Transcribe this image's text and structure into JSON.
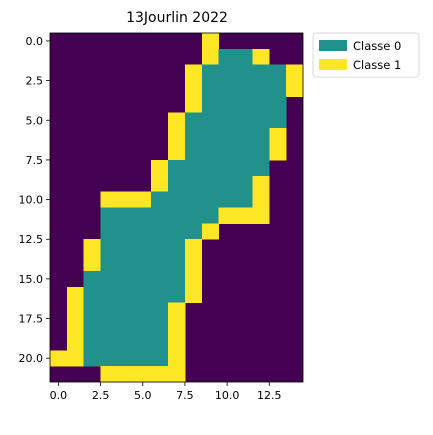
{
  "chart_data": {
    "type": "heatmap",
    "title": "13Jourlin 2022",
    "xlabel": "",
    "ylabel": "",
    "xlim": [
      -0.5,
      14.5
    ],
    "ylim": [
      21.5,
      -0.5
    ],
    "x_ticks": [
      0.0,
      2.5,
      5.0,
      7.5,
      10.0,
      12.5
    ],
    "x_tick_labels": [
      "0.0",
      "2.5",
      "5.0",
      "7.5",
      "10.0",
      "12.5"
    ],
    "y_ticks": [
      0.0,
      2.5,
      5.0,
      7.5,
      10.0,
      12.5,
      15.0,
      17.5,
      20.0
    ],
    "y_tick_labels": [
      "0.0",
      "2.5",
      "5.0",
      "7.5",
      "10.0",
      "12.5",
      "15.0",
      "17.5",
      "20.0"
    ],
    "grid": false,
    "legend_position": "outside-top-right",
    "colors": {
      "background": "#440154",
      "0": "#21918c",
      "1": "#fde725"
    },
    "legend": [
      {
        "label": "Classe 0",
        "color": "#21918c"
      },
      {
        "label": "Classe 1",
        "color": "#fde725"
      }
    ],
    "grid_values": [
      [
        null,
        null,
        null,
        null,
        null,
        null,
        null,
        null,
        null,
        1,
        null,
        null,
        null,
        null,
        null
      ],
      [
        null,
        null,
        null,
        null,
        null,
        null,
        null,
        null,
        null,
        1,
        0,
        0,
        1,
        null,
        null
      ],
      [
        null,
        null,
        null,
        null,
        null,
        null,
        null,
        null,
        1,
        0,
        0,
        0,
        0,
        0,
        1
      ],
      [
        null,
        null,
        null,
        null,
        null,
        null,
        null,
        null,
        1,
        0,
        0,
        0,
        0,
        0,
        1
      ],
      [
        null,
        null,
        null,
        null,
        null,
        null,
        null,
        null,
        1,
        0,
        0,
        0,
        0,
        0,
        null
      ],
      [
        null,
        null,
        null,
        null,
        null,
        null,
        null,
        1,
        0,
        0,
        0,
        0,
        0,
        0,
        null
      ],
      [
        null,
        null,
        null,
        null,
        null,
        null,
        null,
        1,
        0,
        0,
        0,
        0,
        0,
        1,
        null
      ],
      [
        null,
        null,
        null,
        null,
        null,
        null,
        null,
        1,
        0,
        0,
        0,
        0,
        0,
        1,
        null
      ],
      [
        null,
        null,
        null,
        null,
        null,
        null,
        1,
        0,
        0,
        0,
        0,
        0,
        0,
        null,
        null
      ],
      [
        null,
        null,
        null,
        null,
        null,
        null,
        1,
        0,
        0,
        0,
        0,
        0,
        1,
        null,
        null
      ],
      [
        null,
        null,
        null,
        1,
        1,
        1,
        0,
        0,
        0,
        0,
        0,
        0,
        1,
        null,
        null
      ],
      [
        null,
        null,
        null,
        0,
        0,
        0,
        0,
        0,
        0,
        0,
        1,
        1,
        1,
        null,
        null
      ],
      [
        null,
        null,
        null,
        0,
        0,
        0,
        0,
        0,
        0,
        1,
        null,
        null,
        null,
        null,
        null
      ],
      [
        null,
        null,
        1,
        0,
        0,
        0,
        0,
        0,
        1,
        null,
        null,
        null,
        null,
        null,
        null
      ],
      [
        null,
        null,
        1,
        0,
        0,
        0,
        0,
        0,
        1,
        null,
        null,
        null,
        null,
        null,
        null
      ],
      [
        null,
        null,
        0,
        0,
        0,
        0,
        0,
        0,
        1,
        null,
        null,
        null,
        null,
        null,
        null
      ],
      [
        null,
        1,
        0,
        0,
        0,
        0,
        0,
        0,
        1,
        null,
        null,
        null,
        null,
        null,
        null
      ],
      [
        null,
        1,
        0,
        0,
        0,
        0,
        0,
        1,
        null,
        null,
        null,
        null,
        null,
        null,
        null
      ],
      [
        null,
        1,
        0,
        0,
        0,
        0,
        0,
        1,
        null,
        null,
        null,
        null,
        null,
        null,
        null
      ],
      [
        null,
        1,
        0,
        0,
        0,
        0,
        0,
        1,
        null,
        null,
        null,
        null,
        null,
        null,
        null
      ],
      [
        1,
        1,
        0,
        0,
        0,
        0,
        0,
        1,
        null,
        null,
        null,
        null,
        null,
        null,
        null
      ],
      [
        null,
        null,
        null,
        1,
        1,
        1,
        1,
        1,
        null,
        null,
        null,
        null,
        null,
        null,
        null
      ]
    ]
  }
}
